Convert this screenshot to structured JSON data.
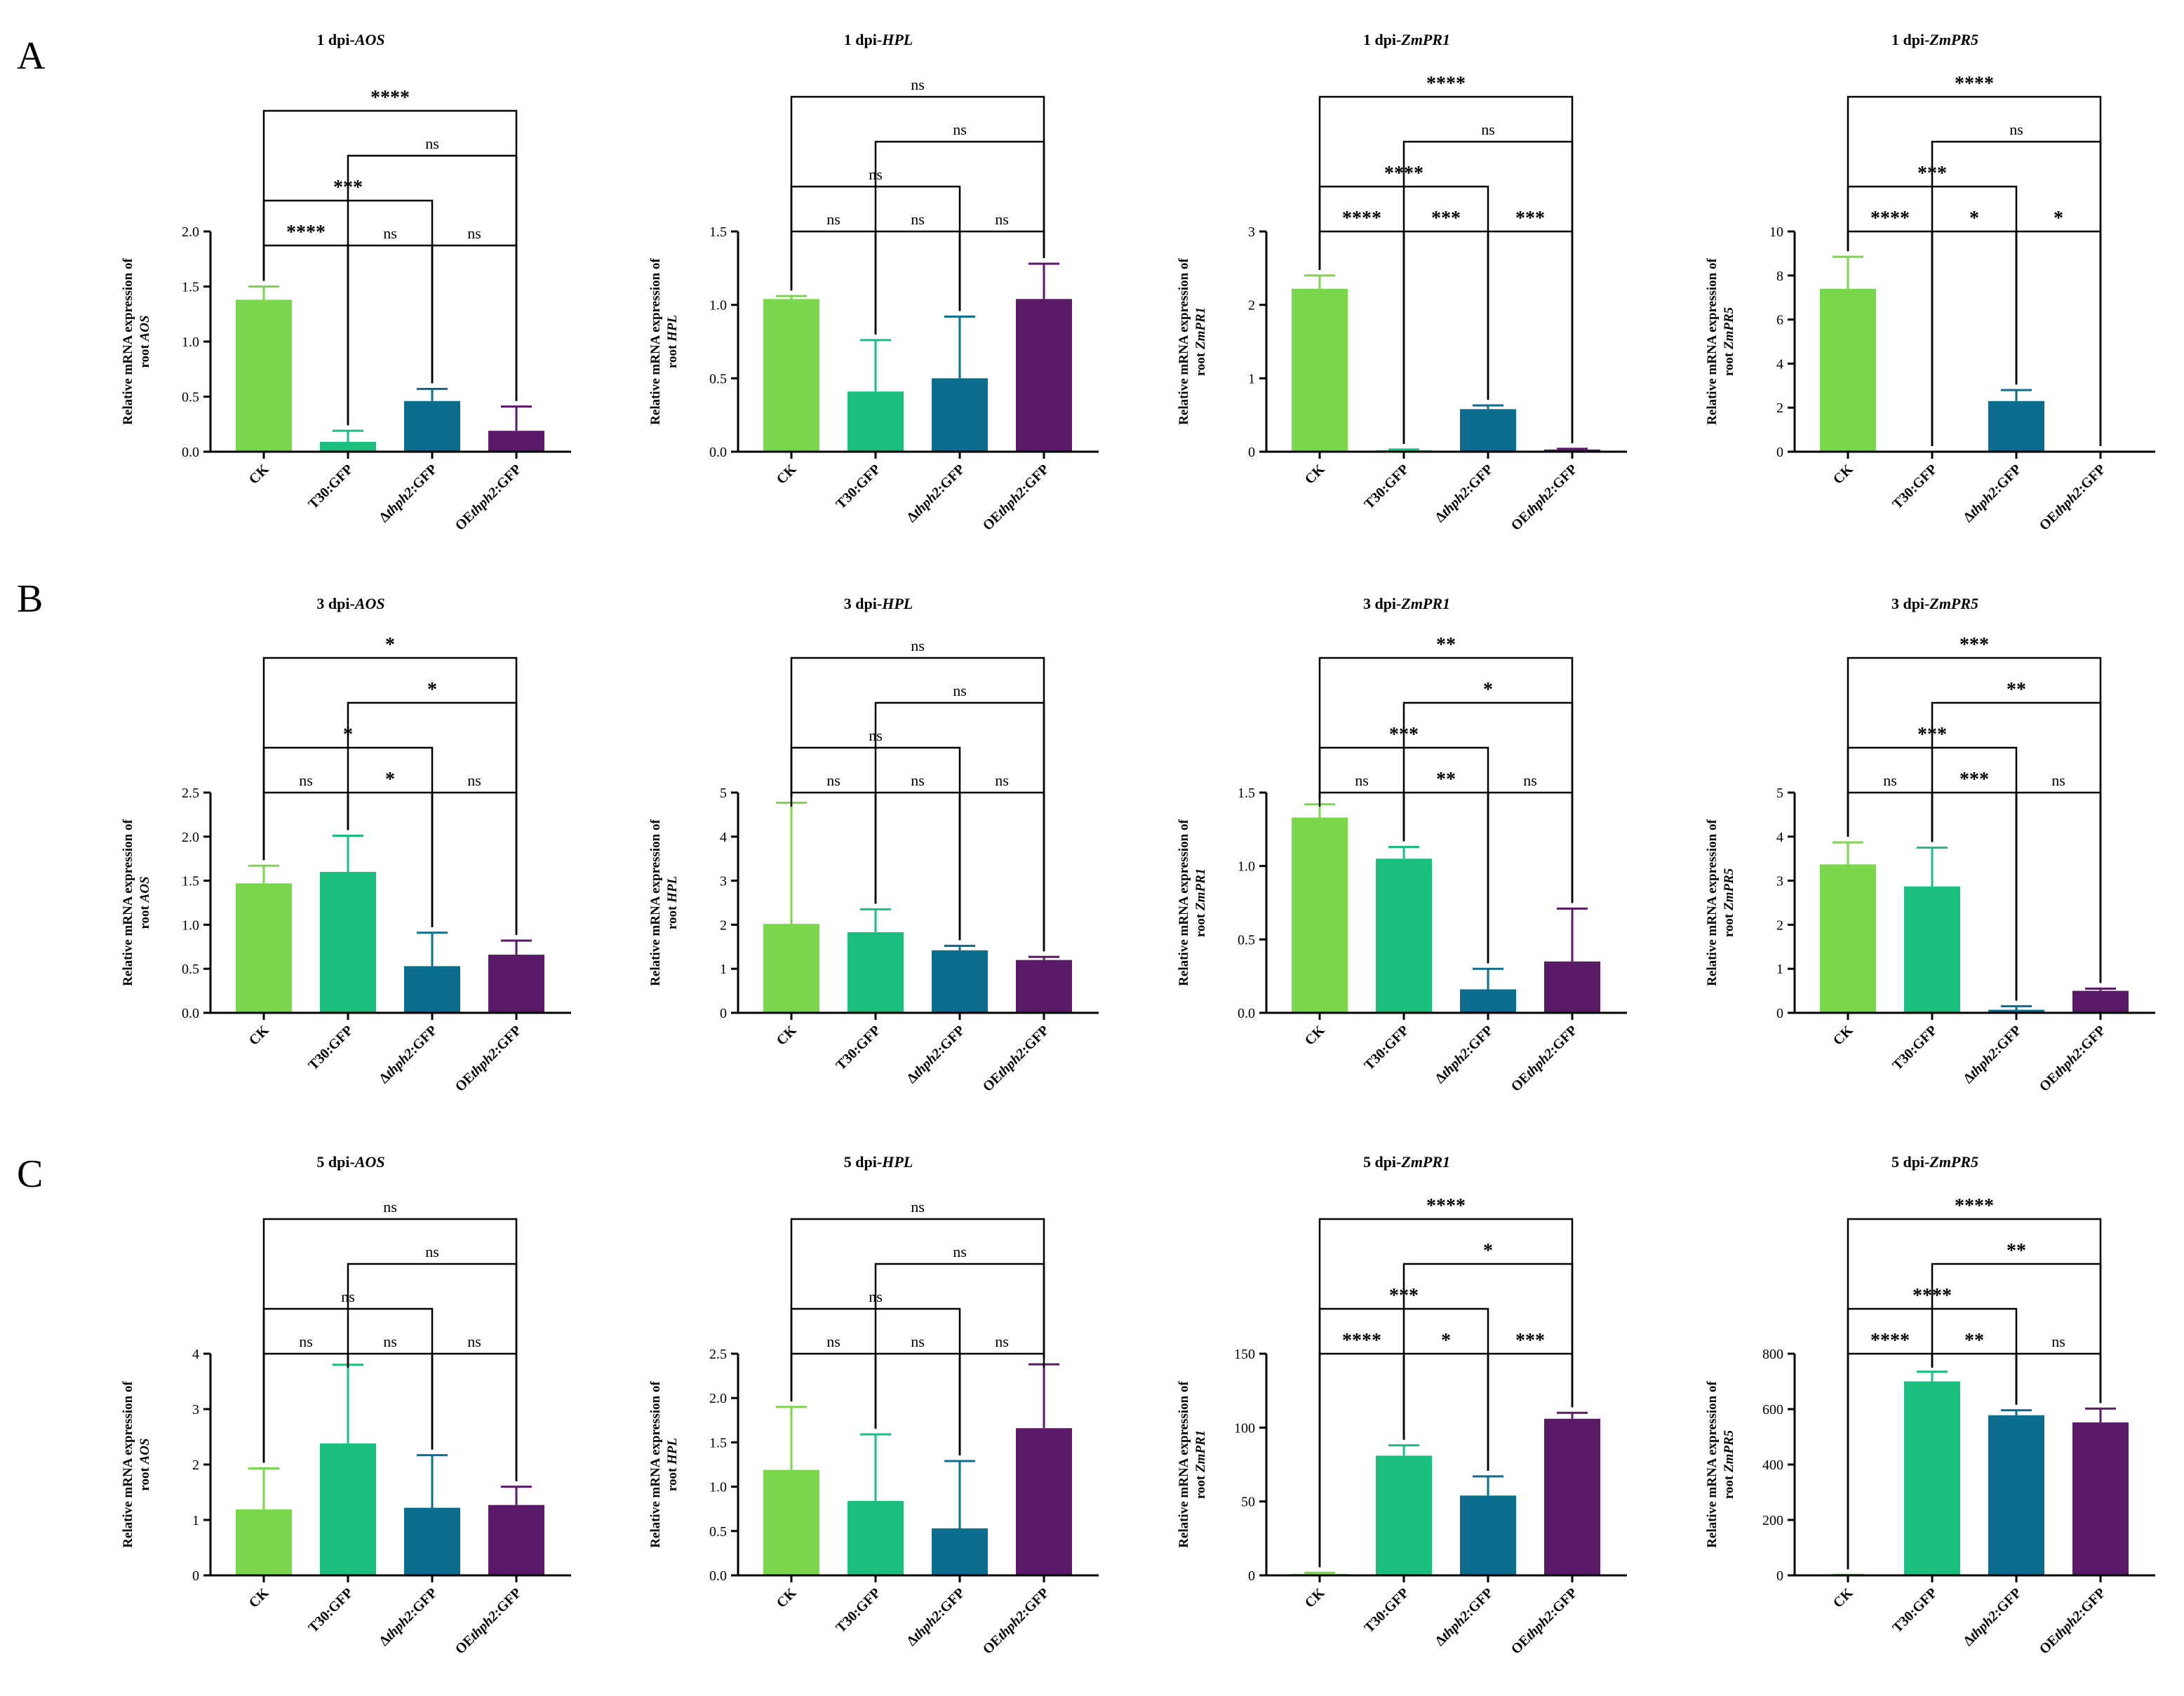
{
  "panel_letters": [
    "A",
    "B",
    "C"
  ],
  "categories": [
    "CK",
    "T30:GFP",
    "Δthph2:GFP",
    "OEthph2:GFP"
  ],
  "category_labels": [
    [
      {
        "t": "CK",
        "i": false
      }
    ],
    [
      {
        "t": "T30:GFP",
        "i": false
      }
    ],
    [
      {
        "t": "Δ",
        "i": false
      },
      {
        "t": "thph2",
        "i": true
      },
      {
        "t": ":GFP",
        "i": false
      }
    ],
    [
      {
        "t": "OE",
        "i": false
      },
      {
        "t": "thph2",
        "i": true
      },
      {
        "t": ":GFP",
        "i": false
      }
    ]
  ],
  "colors": {
    "CK": "#7ad64a",
    "T30:GFP": "#1abf7f",
    "Δthph2:GFP": "#0b6e8f",
    "OEthph2:GFP": "#5a1a68"
  },
  "ylabel_line1": "Relative mRNA expression of",
  "ylabel_line2_prefix": "root ",
  "chart_data": [
    {
      "id": "A1",
      "type": "bar",
      "title_prefix": "1 dpi-",
      "gene": "AOS",
      "categories": [
        "CK",
        "T30:GFP",
        "Δthph2:GFP",
        "OEthph2:GFP"
      ],
      "values": [
        1.38,
        0.09,
        0.46,
        0.19
      ],
      "errors": [
        0.12,
        0.1,
        0.11,
        0.22
      ],
      "ylim": [
        0,
        2.0
      ],
      "yticks": [
        0,
        0.5,
        1.0,
        1.5,
        2.0
      ],
      "ytick_labels": [
        "0.0",
        "0.5",
        "1.0",
        "1.5",
        "2.0"
      ],
      "comparisons": [
        {
          "a": 0,
          "b": 1,
          "label": "****"
        },
        {
          "a": 1,
          "b": 2,
          "label": "ns"
        },
        {
          "a": 2,
          "b": 3,
          "label": "ns"
        },
        {
          "a": 0,
          "b": 2,
          "label": "***"
        },
        {
          "a": 1,
          "b": 3,
          "label": "ns"
        },
        {
          "a": 0,
          "b": 3,
          "label": "****"
        }
      ]
    },
    {
      "id": "A2",
      "type": "bar",
      "title_prefix": "1 dpi-",
      "gene": "HPL",
      "categories": [
        "CK",
        "T30:GFP",
        "Δthph2:GFP",
        "OEthph2:GFP"
      ],
      "values": [
        1.04,
        0.41,
        0.5,
        1.04
      ],
      "errors": [
        0.02,
        0.35,
        0.42,
        0.24
      ],
      "ylim": [
        0,
        1.5
      ],
      "yticks": [
        0,
        0.5,
        1.0,
        1.5
      ],
      "ytick_labels": [
        "0.0",
        "0.5",
        "1.0",
        "1.5"
      ],
      "comparisons": [
        {
          "a": 0,
          "b": 1,
          "label": "ns"
        },
        {
          "a": 1,
          "b": 2,
          "label": "ns"
        },
        {
          "a": 2,
          "b": 3,
          "label": "ns"
        },
        {
          "a": 0,
          "b": 2,
          "label": "ns"
        },
        {
          "a": 1,
          "b": 3,
          "label": "ns"
        },
        {
          "a": 0,
          "b": 3,
          "label": "ns"
        }
      ]
    },
    {
      "id": "A3",
      "type": "bar",
      "title_prefix": "1 dpi-",
      "gene": "ZmPR1",
      "categories": [
        "CK",
        "T30:GFP",
        "Δthph2:GFP",
        "OEthph2:GFP"
      ],
      "values": [
        2.22,
        0.02,
        0.58,
        0.03
      ],
      "errors": [
        0.18,
        0.01,
        0.05,
        0.01
      ],
      "ylim": [
        0,
        3
      ],
      "yticks": [
        0,
        1,
        2,
        3
      ],
      "ytick_labels": [
        "0",
        "1",
        "2",
        "3"
      ],
      "comparisons": [
        {
          "a": 0,
          "b": 1,
          "label": "****"
        },
        {
          "a": 1,
          "b": 2,
          "label": "***"
        },
        {
          "a": 2,
          "b": 3,
          "label": "***"
        },
        {
          "a": 0,
          "b": 2,
          "label": "****"
        },
        {
          "a": 1,
          "b": 3,
          "label": "ns"
        },
        {
          "a": 0,
          "b": 3,
          "label": "****"
        }
      ]
    },
    {
      "id": "A4",
      "type": "bar",
      "title_prefix": "1 dpi-",
      "gene": "ZmPR5",
      "categories": [
        "CK",
        "T30:GFP",
        "Δthph2:GFP",
        "OEthph2:GFP"
      ],
      "values": [
        7.4,
        0.0,
        2.3,
        0.0
      ],
      "errors": [
        1.45,
        0,
        0.5,
        0
      ],
      "ylim": [
        0,
        10
      ],
      "yticks": [
        0,
        2,
        4,
        6,
        8,
        10
      ],
      "ytick_labels": [
        "0",
        "2",
        "4",
        "6",
        "8",
        "10"
      ],
      "comparisons": [
        {
          "a": 0,
          "b": 1,
          "label": "****"
        },
        {
          "a": 1,
          "b": 2,
          "label": "*"
        },
        {
          "a": 2,
          "b": 3,
          "label": "*"
        },
        {
          "a": 0,
          "b": 2,
          "label": "***"
        },
        {
          "a": 1,
          "b": 3,
          "label": "ns"
        },
        {
          "a": 0,
          "b": 3,
          "label": "****"
        }
      ]
    },
    {
      "id": "B1",
      "type": "bar",
      "title_prefix": "3 dpi-",
      "gene": "AOS",
      "categories": [
        "CK",
        "T30:GFP",
        "Δthph2:GFP",
        "OEthph2:GFP"
      ],
      "values": [
        1.47,
        1.6,
        0.53,
        0.66
      ],
      "errors": [
        0.2,
        0.41,
        0.38,
        0.16
      ],
      "ylim": [
        0,
        2.5
      ],
      "yticks": [
        0,
        0.5,
        1.0,
        1.5,
        2.0,
        2.5
      ],
      "ytick_labels": [
        "0.0",
        "0.5",
        "1.0",
        "1.5",
        "2.0",
        "2.5"
      ],
      "comparisons": [
        {
          "a": 0,
          "b": 1,
          "label": "ns"
        },
        {
          "a": 1,
          "b": 2,
          "label": "*"
        },
        {
          "a": 2,
          "b": 3,
          "label": "ns"
        },
        {
          "a": 0,
          "b": 2,
          "label": "*"
        },
        {
          "a": 1,
          "b": 3,
          "label": "*"
        },
        {
          "a": 0,
          "b": 3,
          "label": "*"
        }
      ]
    },
    {
      "id": "B2",
      "type": "bar",
      "title_prefix": "3 dpi-",
      "gene": "HPL",
      "categories": [
        "CK",
        "T30:GFP",
        "Δthph2:GFP",
        "OEthph2:GFP"
      ],
      "values": [
        2.02,
        1.83,
        1.42,
        1.2
      ],
      "errors": [
        2.75,
        0.52,
        0.1,
        0.07
      ],
      "ylim": [
        0,
        5
      ],
      "yticks": [
        0,
        1,
        2,
        3,
        4,
        5
      ],
      "ytick_labels": [
        "0",
        "1",
        "2",
        "3",
        "4",
        "5"
      ],
      "comparisons": [
        {
          "a": 0,
          "b": 1,
          "label": "ns"
        },
        {
          "a": 1,
          "b": 2,
          "label": "ns"
        },
        {
          "a": 2,
          "b": 3,
          "label": "ns"
        },
        {
          "a": 0,
          "b": 2,
          "label": "ns"
        },
        {
          "a": 1,
          "b": 3,
          "label": "ns"
        },
        {
          "a": 0,
          "b": 3,
          "label": "ns"
        }
      ]
    },
    {
      "id": "B3",
      "type": "bar",
      "title_prefix": "3 dpi-",
      "gene": "ZmPR1",
      "categories": [
        "CK",
        "T30:GFP",
        "Δthph2:GFP",
        "OEthph2:GFP"
      ],
      "values": [
        1.33,
        1.05,
        0.16,
        0.35
      ],
      "errors": [
        0.09,
        0.08,
        0.14,
        0.36
      ],
      "ylim": [
        0,
        1.5
      ],
      "yticks": [
        0,
        0.5,
        1.0,
        1.5
      ],
      "ytick_labels": [
        "0.0",
        "0.5",
        "1.0",
        "1.5"
      ],
      "comparisons": [
        {
          "a": 0,
          "b": 1,
          "label": "ns"
        },
        {
          "a": 1,
          "b": 2,
          "label": "**"
        },
        {
          "a": 2,
          "b": 3,
          "label": "ns"
        },
        {
          "a": 0,
          "b": 2,
          "label": "***"
        },
        {
          "a": 1,
          "b": 3,
          "label": "*"
        },
        {
          "a": 0,
          "b": 3,
          "label": "**"
        }
      ]
    },
    {
      "id": "B4",
      "type": "bar",
      "title_prefix": "3 dpi-",
      "gene": "ZmPR5",
      "categories": [
        "CK",
        "T30:GFP",
        "Δthph2:GFP",
        "OEthph2:GFP"
      ],
      "values": [
        3.37,
        2.87,
        0.07,
        0.5
      ],
      "errors": [
        0.5,
        0.88,
        0.08,
        0.05
      ],
      "ylim": [
        0,
        5
      ],
      "yticks": [
        0,
        1,
        2,
        3,
        4,
        5
      ],
      "ytick_labels": [
        "0",
        "1",
        "2",
        "3",
        "4",
        "5"
      ],
      "comparisons": [
        {
          "a": 0,
          "b": 1,
          "label": "ns"
        },
        {
          "a": 1,
          "b": 2,
          "label": "***"
        },
        {
          "a": 2,
          "b": 3,
          "label": "ns"
        },
        {
          "a": 0,
          "b": 2,
          "label": "***"
        },
        {
          "a": 1,
          "b": 3,
          "label": "**"
        },
        {
          "a": 0,
          "b": 3,
          "label": "***"
        }
      ]
    },
    {
      "id": "C1",
      "type": "bar",
      "title_prefix": "5 dpi-",
      "gene": "AOS",
      "categories": [
        "CK",
        "T30:GFP",
        "Δthph2:GFP",
        "OEthph2:GFP"
      ],
      "values": [
        1.19,
        2.38,
        1.22,
        1.27
      ],
      "errors": [
        0.74,
        1.42,
        0.95,
        0.33
      ],
      "ylim": [
        0,
        4
      ],
      "yticks": [
        0,
        1,
        2,
        3,
        4
      ],
      "ytick_labels": [
        "0",
        "1",
        "2",
        "3",
        "4"
      ],
      "comparisons": [
        {
          "a": 0,
          "b": 1,
          "label": "ns"
        },
        {
          "a": 1,
          "b": 2,
          "label": "ns"
        },
        {
          "a": 2,
          "b": 3,
          "label": "ns"
        },
        {
          "a": 0,
          "b": 2,
          "label": "ns"
        },
        {
          "a": 1,
          "b": 3,
          "label": "ns"
        },
        {
          "a": 0,
          "b": 3,
          "label": "ns"
        }
      ]
    },
    {
      "id": "C2",
      "type": "bar",
      "title_prefix": "5 dpi-",
      "gene": "HPL",
      "categories": [
        "CK",
        "T30:GFP",
        "Δthph2:GFP",
        "OEthph2:GFP"
      ],
      "values": [
        1.19,
        0.84,
        0.53,
        1.66
      ],
      "errors": [
        0.71,
        0.75,
        0.76,
        0.72
      ],
      "ylim": [
        0,
        2.5
      ],
      "yticks": [
        0,
        0.5,
        1.0,
        1.5,
        2.0,
        2.5
      ],
      "ytick_labels": [
        "0.0",
        "0.5",
        "1.0",
        "1.5",
        "2.0",
        "2.5"
      ],
      "comparisons": [
        {
          "a": 0,
          "b": 1,
          "label": "ns"
        },
        {
          "a": 1,
          "b": 2,
          "label": "ns"
        },
        {
          "a": 2,
          "b": 3,
          "label": "ns"
        },
        {
          "a": 0,
          "b": 2,
          "label": "ns"
        },
        {
          "a": 1,
          "b": 3,
          "label": "ns"
        },
        {
          "a": 0,
          "b": 3,
          "label": "ns"
        }
      ]
    },
    {
      "id": "C3",
      "type": "bar",
      "title_prefix": "5 dpi-",
      "gene": "ZmPR1",
      "categories": [
        "CK",
        "T30:GFP",
        "Δthph2:GFP",
        "OEthph2:GFP"
      ],
      "values": [
        1.0,
        81,
        54,
        106
      ],
      "errors": [
        0.8,
        7,
        13,
        4
      ],
      "ylim": [
        0,
        150
      ],
      "yticks": [
        0,
        50,
        100,
        150
      ],
      "ytick_labels": [
        "0",
        "50",
        "100",
        "150"
      ],
      "comparisons": [
        {
          "a": 0,
          "b": 1,
          "label": "****"
        },
        {
          "a": 1,
          "b": 2,
          "label": "*"
        },
        {
          "a": 2,
          "b": 3,
          "label": "***"
        },
        {
          "a": 0,
          "b": 2,
          "label": "***"
        },
        {
          "a": 1,
          "b": 3,
          "label": "*"
        },
        {
          "a": 0,
          "b": 3,
          "label": "****"
        }
      ]
    },
    {
      "id": "C4",
      "type": "bar",
      "title_prefix": "5 dpi-",
      "gene": "ZmPR5",
      "categories": [
        "CK",
        "T30:GFP",
        "Δthph2:GFP",
        "OEthph2:GFP"
      ],
      "values": [
        1.0,
        700,
        578,
        552
      ],
      "errors": [
        1.0,
        35,
        18,
        50
      ],
      "ylim": [
        0,
        800
      ],
      "yticks": [
        0,
        200,
        400,
        600,
        800
      ],
      "ytick_labels": [
        "0",
        "200",
        "400",
        "600",
        "800"
      ],
      "comparisons": [
        {
          "a": 0,
          "b": 1,
          "label": "****"
        },
        {
          "a": 1,
          "b": 2,
          "label": "**"
        },
        {
          "a": 2,
          "b": 3,
          "label": "ns"
        },
        {
          "a": 0,
          "b": 2,
          "label": "****"
        },
        {
          "a": 1,
          "b": 3,
          "label": "**"
        },
        {
          "a": 0,
          "b": 3,
          "label": "****"
        }
      ]
    }
  ]
}
